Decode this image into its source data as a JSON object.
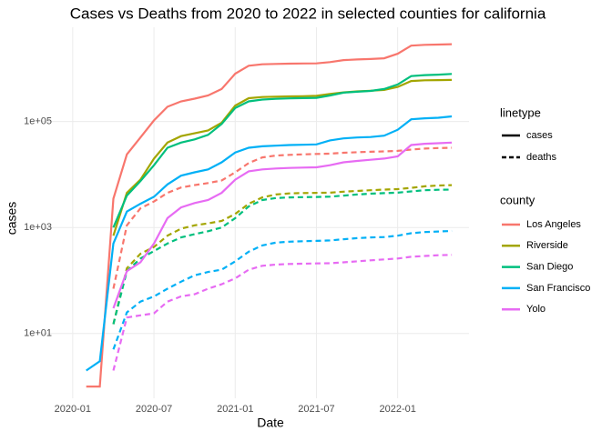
{
  "chart_data": {
    "type": "line",
    "title": "Cases vs Deaths from 2020 to 2022 in selected counties for california",
    "x_label": "Date",
    "y_label": "cases",
    "x": [
      "2020-01",
      "2020-02",
      "2020-03",
      "2020-04",
      "2020-05",
      "2020-06",
      "2020-07",
      "2020-08",
      "2020-09",
      "2020-10",
      "2020-11",
      "2020-12",
      "2021-01",
      "2021-02",
      "2021-03",
      "2021-04",
      "2021-05",
      "2021-06",
      "2021-07",
      "2021-08",
      "2021-09",
      "2021-10",
      "2021-11",
      "2021-12",
      "2022-01",
      "2022-02",
      "2022-03",
      "2022-04",
      "2022-05"
    ],
    "xlim": [
      "2019-12",
      "2022-06"
    ],
    "xticks": [
      "2020-01",
      "2020-07",
      "2021-01",
      "2021-07",
      "2022-01"
    ],
    "ylim": [
      0.6,
      6000000
    ],
    "log_y": true,
    "yticks": [
      {
        "value": 10,
        "label": "1e+01"
      },
      {
        "value": 1000,
        "label": "1e+03"
      },
      {
        "value": 100000,
        "label": "1e+05"
      }
    ],
    "grid": true,
    "linetype_legend": {
      "title": "linetype",
      "items": [
        {
          "label": "cases",
          "dash": "solid"
        },
        {
          "label": "deaths",
          "dash": "dashed"
        }
      ]
    },
    "color_legend_title": "county",
    "series": [
      {
        "name": "Los Angeles",
        "color": "#F8766D",
        "cases": [
          null,
          1,
          1,
          3500,
          24000,
          50000,
          105000,
          190000,
          240000,
          270000,
          310000,
          410000,
          800000,
          1130000,
          1200000,
          1220000,
          1235000,
          1245000,
          1250000,
          1320000,
          1440000,
          1480000,
          1510000,
          1560000,
          1900000,
          2700000,
          2800000,
          2830000,
          2880000
        ],
        "deaths": [
          null,
          null,
          null,
          70,
          1100,
          2300,
          3100,
          4500,
          5700,
          6300,
          6900,
          7700,
          11000,
          16500,
          21000,
          22800,
          23500,
          24000,
          24400,
          24700,
          25700,
          26400,
          26900,
          27300,
          28000,
          29500,
          30900,
          31600,
          32000
        ]
      },
      {
        "name": "Riverside",
        "color": "#A3A500",
        "cases": [
          null,
          null,
          null,
          700,
          4500,
          8000,
          20000,
          40000,
          53000,
          60000,
          68000,
          95000,
          200000,
          275000,
          290000,
          295000,
          298000,
          300000,
          305000,
          330000,
          355000,
          370000,
          380000,
          395000,
          450000,
          580000,
          600000,
          605000,
          610000
        ],
        "deaths": [
          null,
          null,
          null,
          15,
          170,
          320,
          430,
          700,
          950,
          1100,
          1200,
          1330,
          1800,
          2800,
          3700,
          4200,
          4400,
          4480,
          4500,
          4550,
          4750,
          4900,
          5050,
          5200,
          5300,
          5600,
          6000,
          6200,
          6300
        ]
      },
      {
        "name": "San Diego",
        "color": "#00BF7D",
        "cases": [
          null,
          null,
          null,
          1000,
          4000,
          7500,
          15000,
          32000,
          40000,
          46000,
          56000,
          90000,
          180000,
          240000,
          260000,
          268000,
          273000,
          277000,
          280000,
          310000,
          350000,
          365000,
          378000,
          410000,
          500000,
          720000,
          750000,
          765000,
          790000
        ],
        "deaths": [
          null,
          null,
          null,
          15,
          150,
          260,
          360,
          500,
          650,
          750,
          850,
          1000,
          1500,
          2500,
          3300,
          3600,
          3700,
          3750,
          3780,
          3820,
          4000,
          4200,
          4350,
          4450,
          4550,
          4800,
          5050,
          5150,
          5200
        ]
      },
      {
        "name": "San Francisco",
        "color": "#00B0F6",
        "cases": [
          null,
          2,
          3,
          500,
          2000,
          2800,
          3800,
          6500,
          9500,
          11000,
          12500,
          17000,
          26000,
          32000,
          34000,
          35000,
          36000,
          36500,
          37000,
          44000,
          48000,
          50000,
          51000,
          54000,
          70000,
          110000,
          115000,
          118000,
          125000
        ],
        "deaths": [
          null,
          null,
          null,
          5,
          25,
          40,
          50,
          70,
          95,
          125,
          145,
          160,
          230,
          350,
          460,
          520,
          540,
          550,
          560,
          570,
          600,
          630,
          650,
          660,
          700,
          780,
          820,
          840,
          860
        ]
      },
      {
        "name": "Yolo",
        "color": "#E76BF3",
        "cases": [
          null,
          null,
          null,
          30,
          150,
          220,
          500,
          1500,
          2400,
          2900,
          3300,
          4500,
          8000,
          11500,
          12500,
          13000,
          13300,
          13500,
          13700,
          15000,
          17000,
          18000,
          19000,
          20000,
          22000,
          36000,
          38000,
          39000,
          40000
        ],
        "deaths": [
          null,
          null,
          null,
          2,
          20,
          22,
          24,
          40,
          50,
          55,
          70,
          85,
          110,
          160,
          190,
          200,
          205,
          208,
          210,
          212,
          220,
          230,
          240,
          250,
          260,
          280,
          290,
          300,
          305
        ]
      }
    ]
  }
}
